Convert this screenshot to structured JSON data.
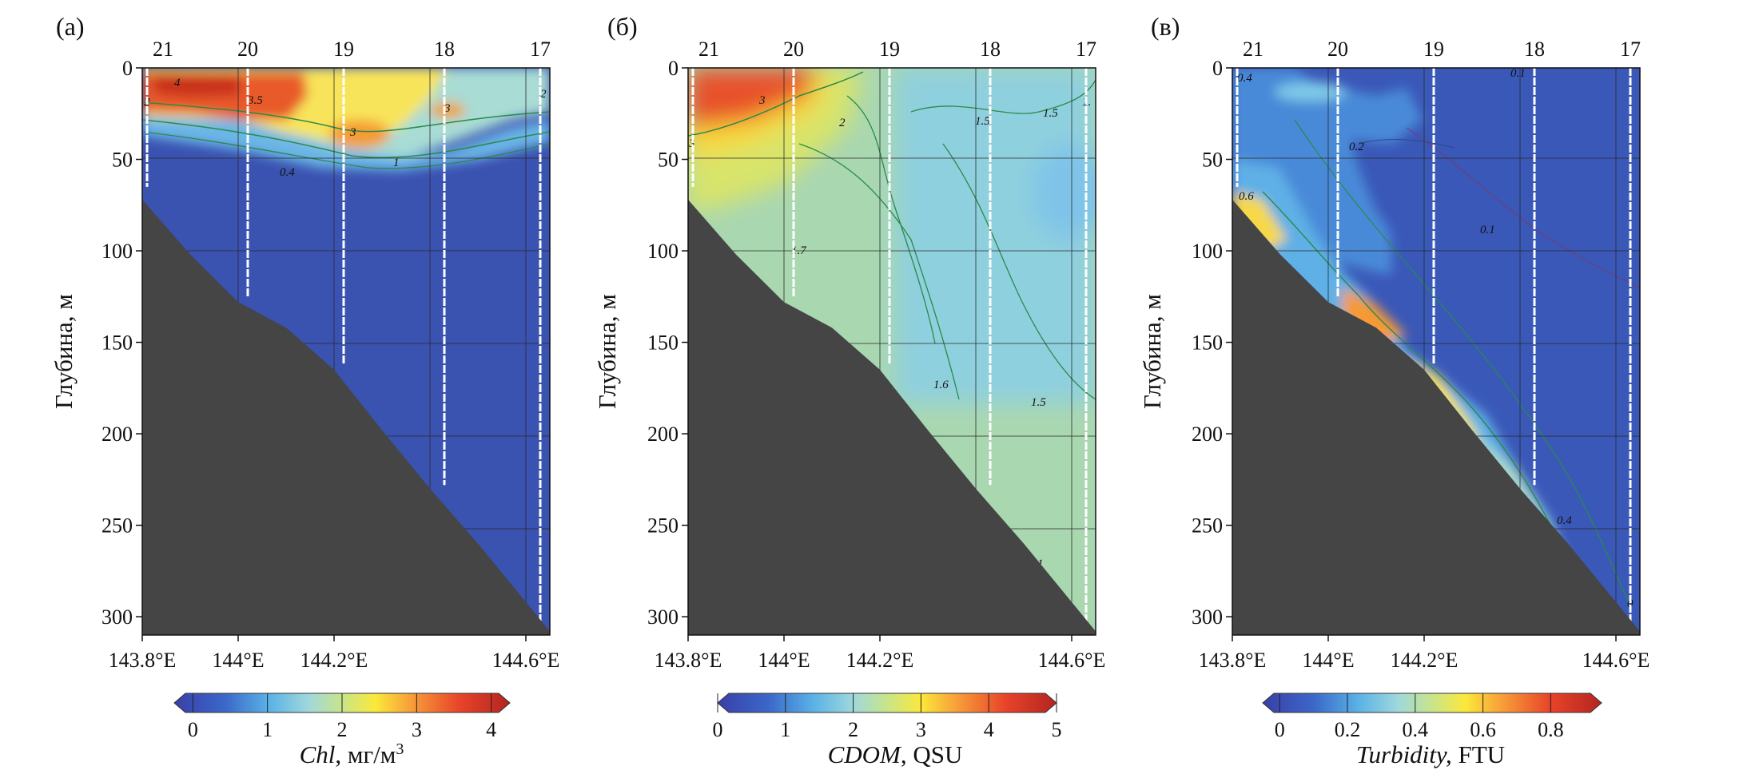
{
  "chart_data": [
    {
      "panel_label": "(а)",
      "type": "heatmap",
      "xlabel": "",
      "ylabel": "Глубина, м",
      "xlim": [
        143.8,
        144.65
      ],
      "ylim": [
        0,
        310
      ],
      "x_ticks": [
        "143.8°E",
        "144°E",
        "144.2°E",
        "144.6°E"
      ],
      "y_ticks": [
        "0",
        "50",
        "100",
        "150",
        "200",
        "250",
        "300"
      ],
      "stations": [
        {
          "label": "21",
          "lon": 143.81,
          "cast_bottom": 65
        },
        {
          "label": "20",
          "lon": 144.02,
          "cast_bottom": 125
        },
        {
          "label": "19",
          "lon": 144.22,
          "cast_bottom": 162
        },
        {
          "label": "18",
          "lon": 144.43,
          "cast_bottom": 228
        },
        {
          "label": "17",
          "lon": 144.63,
          "cast_bottom": 303
        }
      ],
      "bottom_profile": [
        [
          143.8,
          72
        ],
        [
          143.9,
          102
        ],
        [
          144.0,
          128
        ],
        [
          144.1,
          142
        ],
        [
          144.2,
          165
        ],
        [
          144.3,
          198
        ],
        [
          144.4,
          230
        ],
        [
          144.5,
          260
        ],
        [
          144.65,
          308
        ]
      ],
      "contour_labels": [
        "4",
        "3.5",
        "3",
        "3",
        "1",
        "0.4",
        "2",
        "2"
      ],
      "colorbar": {
        "label_italic": "Chl",
        "label_rest": ", мг/м",
        "label_sup": "3",
        "ticks": [
          "0",
          "1",
          "2",
          "3",
          "4"
        ],
        "min": -0.25,
        "max": 4.25
      }
    },
    {
      "panel_label": "(б)",
      "type": "heatmap",
      "xlabel": "",
      "ylabel": "Глубина, м",
      "xlim": [
        143.8,
        144.65
      ],
      "ylim": [
        0,
        310
      ],
      "x_ticks": [
        "143.8°E",
        "144°E",
        "144.2°E",
        "144.6°E"
      ],
      "y_ticks": [
        "0",
        "50",
        "100",
        "150",
        "200",
        "250",
        "300"
      ],
      "stations": [
        {
          "label": "21",
          "lon": 143.81,
          "cast_bottom": 65
        },
        {
          "label": "20",
          "lon": 144.02,
          "cast_bottom": 125
        },
        {
          "label": "19",
          "lon": 144.22,
          "cast_bottom": 162
        },
        {
          "label": "18",
          "lon": 144.43,
          "cast_bottom": 228
        },
        {
          "label": "17",
          "lon": 144.63,
          "cast_bottom": 303
        }
      ],
      "bottom_profile": [
        [
          143.8,
          72
        ],
        [
          143.9,
          102
        ],
        [
          144.0,
          128
        ],
        [
          144.1,
          142
        ],
        [
          144.2,
          165
        ],
        [
          144.3,
          198
        ],
        [
          144.4,
          230
        ],
        [
          144.5,
          260
        ],
        [
          144.65,
          308
        ]
      ],
      "contour_labels": [
        "3",
        "2",
        "1.5",
        "1.5",
        "1.",
        "3",
        "1.7",
        "1.6",
        "1.5",
        "1"
      ],
      "colorbar": {
        "label_italic": "CDOM",
        "label_rest": ", QSU",
        "label_sup": "",
        "ticks": [
          "0",
          "1",
          "2",
          "3",
          "4",
          "5"
        ],
        "min": 0,
        "max": 5
      }
    },
    {
      "panel_label": "(в)",
      "type": "heatmap",
      "xlabel": "",
      "ylabel": "Глубина, м",
      "xlim": [
        143.8,
        144.65
      ],
      "ylim": [
        0,
        310
      ],
      "x_ticks": [
        "143.8°E",
        "144°E",
        "144.2°E",
        "144.6°E"
      ],
      "y_ticks": [
        "0",
        "50",
        "100",
        "150",
        "200",
        "250",
        "300"
      ],
      "stations": [
        {
          "label": "21",
          "lon": 143.81,
          "cast_bottom": 65
        },
        {
          "label": "20",
          "lon": 144.02,
          "cast_bottom": 125
        },
        {
          "label": "19",
          "lon": 144.22,
          "cast_bottom": 162
        },
        {
          "label": "18",
          "lon": 144.43,
          "cast_bottom": 228
        },
        {
          "label": "17",
          "lon": 144.63,
          "cast_bottom": 303
        }
      ],
      "bottom_profile": [
        [
          143.8,
          72
        ],
        [
          143.9,
          102
        ],
        [
          144.0,
          128
        ],
        [
          144.1,
          142
        ],
        [
          144.2,
          165
        ],
        [
          144.3,
          198
        ],
        [
          144.4,
          230
        ],
        [
          144.5,
          260
        ],
        [
          144.65,
          308
        ]
      ],
      "contour_labels": [
        "0.4",
        "0.1",
        "0.2",
        "0.1",
        "0.6",
        "0.4",
        "0"
      ],
      "colorbar": {
        "label_italic": "Turbidity,",
        "label_rest": " FTU",
        "label_sup": "",
        "ticks": [
          "0",
          "0.2",
          "0.4",
          "0.6",
          "0.8"
        ],
        "min": -0.05,
        "max": 0.95
      }
    }
  ]
}
